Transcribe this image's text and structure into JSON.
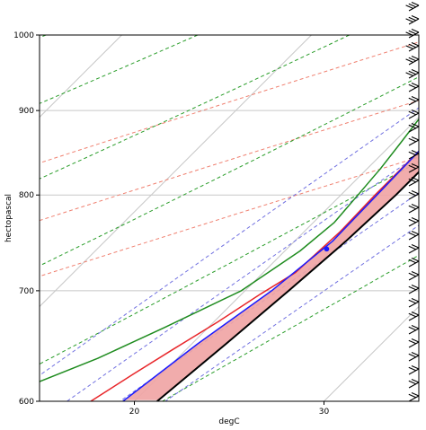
{
  "chart_data": {
    "type": "line",
    "subtype": "skew-t log-p sounding",
    "xlabel": "degC",
    "ylabel": "hectopascal",
    "xlim": [
      15,
      35
    ],
    "ylim": [
      1000,
      600
    ],
    "y_scale": "log",
    "x_ticks": [
      "20",
      "30"
    ],
    "y_ticks": [
      "600",
      "700",
      "800",
      "900",
      "1000"
    ],
    "grid": true,
    "colors": {
      "temperature": "#e8262a",
      "dewpoint": "#1f8c1f",
      "parcel": "#000000",
      "virtual": "#1a1aff",
      "cape_fill": "#f0a3a3",
      "cin_fill": "#8fb6d9",
      "dry_adiabat": "#f08070",
      "moist_adiabat": "#2a9d2a",
      "mixing_ratio": "#7070e0",
      "isotherm": "#c8c8c8"
    },
    "series": [
      {
        "key": "temperature",
        "points": [
          [
            23.3,
            1000
          ],
          [
            22.9,
            985
          ],
          [
            22.4,
            965
          ],
          [
            21.6,
            938
          ],
          [
            20.9,
            920
          ],
          [
            20.8,
            910
          ],
          [
            21.3,
            895
          ],
          [
            21.7,
            880
          ],
          [
            21.8,
            850
          ],
          [
            21.8,
            800
          ],
          [
            21.9,
            760
          ],
          [
            21.7,
            718
          ],
          [
            21.0,
            697
          ],
          [
            20.2,
            670
          ],
          [
            19.3,
            645
          ],
          [
            18.5,
            623
          ],
          [
            17.7,
            600
          ]
        ]
      },
      {
        "key": "dewpoint",
        "points": [
          [
            21.6,
            1000
          ],
          [
            21.2,
            965
          ],
          [
            20.7,
            945
          ],
          [
            20.4,
            920
          ],
          [
            20.2,
            905
          ],
          [
            20.1,
            890
          ],
          [
            20.4,
            860
          ],
          [
            20.7,
            830
          ],
          [
            20.9,
            800
          ],
          [
            21.1,
            770
          ],
          [
            20.8,
            740
          ],
          [
            19.8,
            700
          ],
          [
            17.7,
            665
          ],
          [
            15.8,
            637
          ],
          [
            13.8,
            615
          ],
          [
            11.8,
            600
          ]
        ]
      },
      {
        "key": "parcel",
        "points": [
          [
            22.4,
            985
          ],
          [
            22.6,
            950
          ],
          [
            22.8,
            900
          ],
          [
            22.9,
            850
          ],
          [
            22.9,
            800
          ],
          [
            22.7,
            750
          ],
          [
            22.3,
            700
          ],
          [
            21.8,
            650
          ],
          [
            21.2,
            600
          ]
        ]
      },
      {
        "key": "virtual",
        "points": [
          [
            24.7,
            1000
          ],
          [
            23.3,
            980
          ],
          [
            22.2,
            960
          ],
          [
            21.6,
            940
          ],
          [
            21.5,
            920
          ],
          [
            21.5,
            880
          ],
          [
            21.8,
            850
          ],
          [
            21.9,
            800
          ],
          [
            22.0,
            750
          ],
          [
            21.4,
            700
          ],
          [
            20.3,
            650
          ],
          [
            19.4,
            600
          ]
        ]
      }
    ],
    "markers": [
      {
        "key": "parcel",
        "x": 22.4,
        "y": 953
      },
      {
        "key": "parcel",
        "x": 22.4,
        "y": 985
      },
      {
        "key": "virtual",
        "x": 21.6,
        "y": 950
      },
      {
        "key": "virtual",
        "x": 22.1,
        "y": 742
      }
    ],
    "wind_barbs_count": 30
  }
}
